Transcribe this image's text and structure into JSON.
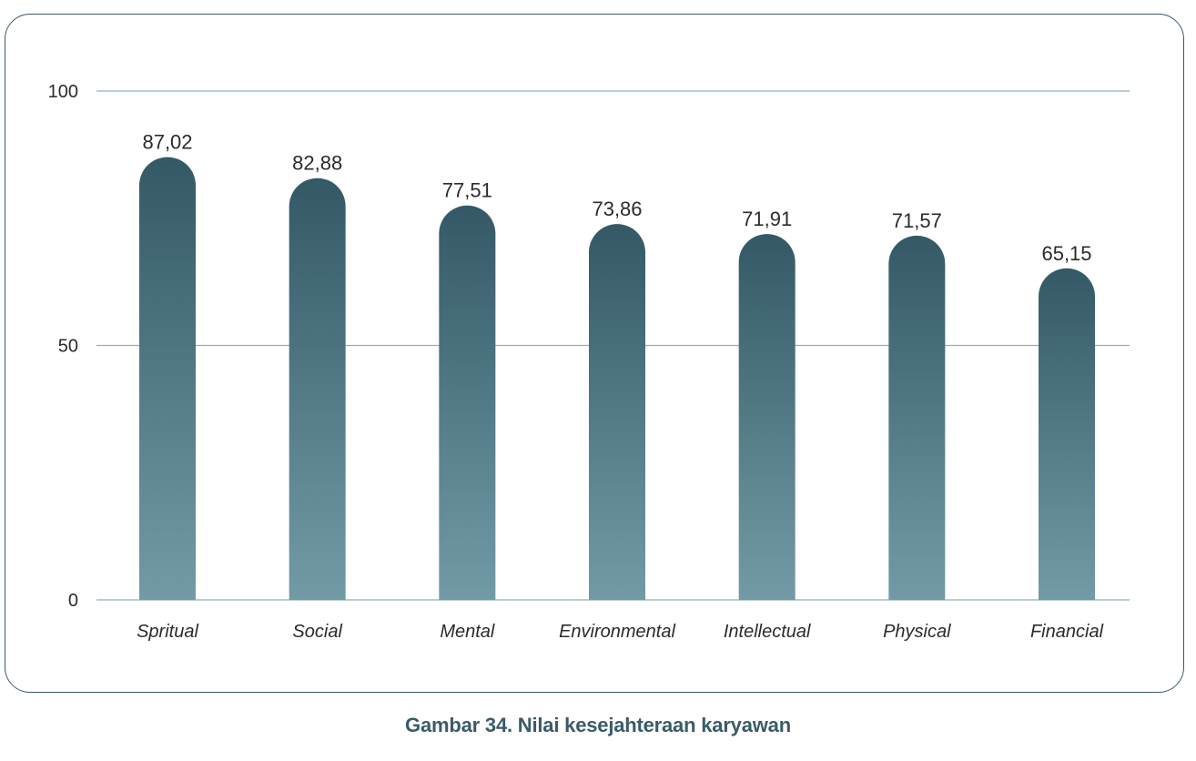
{
  "caption": "Gambar 34. Nilai kesejahteraan karyawan",
  "colors": {
    "bar_top": "#345866",
    "bar_bottom": "#729ba7",
    "gridline": "#8fb1bb",
    "caption": "#3a5b67",
    "border": "#3a5a66"
  },
  "chart_data": {
    "type": "bar",
    "title": "",
    "xlabel": "",
    "ylabel": "",
    "ylim": [
      0,
      100
    ],
    "yticks": [
      "0",
      "50",
      "100"
    ],
    "grid": true,
    "categories": [
      "Spritual",
      "Social",
      "Mental",
      "Environmental",
      "Intellectual",
      "Physical",
      "Financial"
    ],
    "values": [
      87.02,
      82.88,
      77.51,
      73.86,
      71.91,
      71.57,
      65.15
    ],
    "value_labels": [
      "87,02",
      "82,88",
      "77,51",
      "73,86",
      "71,91",
      "71,57",
      "65,15"
    ]
  }
}
